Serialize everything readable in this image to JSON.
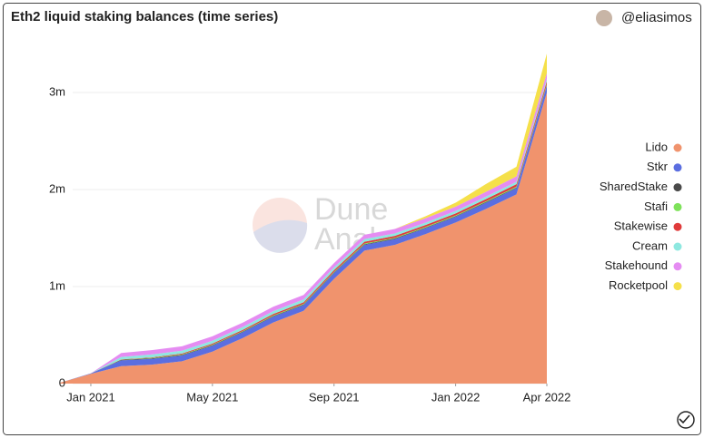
{
  "chart_data": {
    "type": "stacked_area",
    "title": "Eth2 liquid staking balances (time series)",
    "author": "@eliasimos",
    "watermark": [
      "Dune",
      "Analytics"
    ],
    "x": [
      "2020-12",
      "2021-01",
      "2021-02",
      "2021-03",
      "2021-04",
      "2021-05",
      "2021-06",
      "2021-07",
      "2021-08",
      "2021-09",
      "2021-10",
      "2021-11",
      "2021-12",
      "2022-01",
      "2022-02",
      "2022-03",
      "2022-04"
    ],
    "xlim": [
      "2020-12",
      "2022-04"
    ],
    "xticks": [
      {
        "value": "2021-01",
        "label": "Jan 2021"
      },
      {
        "value": "2021-05",
        "label": "May 2021"
      },
      {
        "value": "2021-09",
        "label": "Sep 2021"
      },
      {
        "value": "2022-01",
        "label": "Jan 2022"
      },
      {
        "value": "2022-04",
        "label": "Apr 2022"
      }
    ],
    "ylim": [
      0,
      3500000
    ],
    "yticks": [
      0,
      {
        "value": 1000000,
        "label": "1m"
      },
      {
        "value": 2000000,
        "label": "2m"
      },
      {
        "value": 3000000,
        "label": "3m"
      }
    ],
    "grid": true,
    "legend": "right",
    "series": [
      {
        "name": "Lido",
        "color": "#f0936d",
        "values": [
          10000,
          100000,
          180000,
          195000,
          230000,
          330000,
          470000,
          630000,
          750000,
          1080000,
          1370000,
          1430000,
          1540000,
          1660000,
          1800000,
          1950000,
          3000000
        ]
      },
      {
        "name": "Stkr",
        "color": "#5b6ee0",
        "values": [
          0,
          5000,
          60000,
          60000,
          60000,
          60000,
          60000,
          60000,
          60000,
          60000,
          60000,
          60000,
          60000,
          60000,
          65000,
          65000,
          70000
        ]
      },
      {
        "name": "SharedStake",
        "color": "#4a4a4a",
        "values": [
          0,
          0,
          5000,
          6000,
          6000,
          6000,
          6000,
          6000,
          6000,
          6000,
          6000,
          6000,
          6000,
          6000,
          6000,
          6000,
          6000
        ]
      },
      {
        "name": "Stafi",
        "color": "#7ee25a",
        "values": [
          0,
          0,
          3000,
          4000,
          5000,
          6000,
          6000,
          7000,
          7000,
          7000,
          8000,
          8000,
          8000,
          8000,
          9000,
          9000,
          10000
        ]
      },
      {
        "name": "Stakewise",
        "color": "#e03b3b",
        "values": [
          0,
          0,
          2000,
          5000,
          8000,
          10000,
          12000,
          14000,
          15000,
          16000,
          18000,
          18000,
          19000,
          20000,
          22000,
          25000,
          30000
        ]
      },
      {
        "name": "Cream",
        "color": "#8ee8e0",
        "values": [
          0,
          0,
          25000,
          30000,
          30000,
          30000,
          30000,
          30000,
          30000,
          28000,
          27000,
          26000,
          25000,
          25000,
          25000,
          25000,
          25000
        ]
      },
      {
        "name": "Stakehound",
        "color": "#e58cf2",
        "values": [
          0,
          0,
          40000,
          45000,
          45000,
          45000,
          45000,
          45000,
          45000,
          45000,
          45000,
          45000,
          45000,
          45000,
          50000,
          55000,
          60000
        ]
      },
      {
        "name": "Rocketpool",
        "color": "#f5e04a",
        "values": [
          0,
          0,
          0,
          0,
          0,
          0,
          0,
          0,
          0,
          0,
          0,
          0,
          20000,
          40000,
          80000,
          100000,
          200000
        ]
      }
    ]
  }
}
